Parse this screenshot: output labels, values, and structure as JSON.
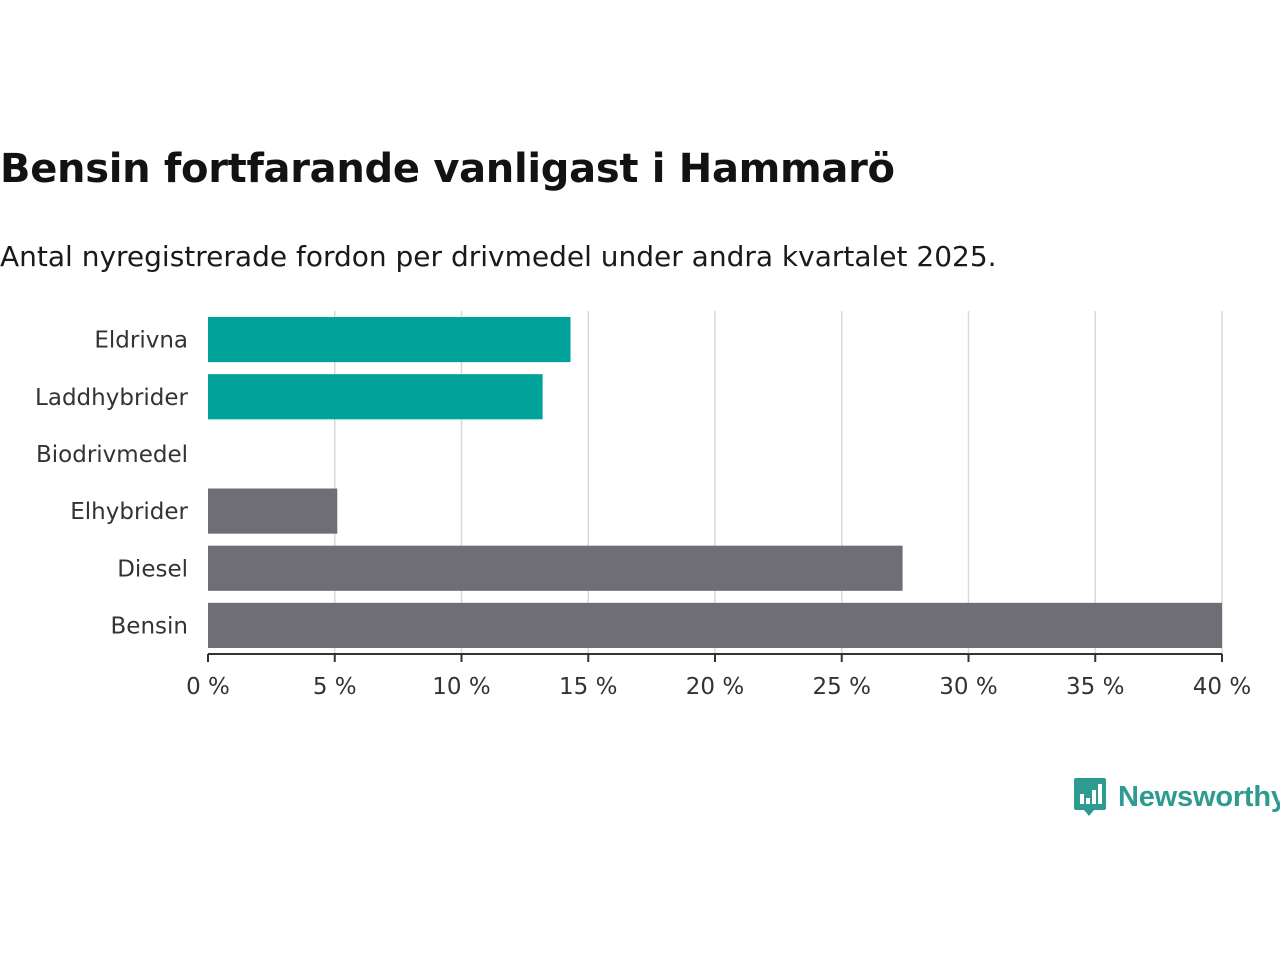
{
  "title": "Bensin fortfarande vanligast i Hammarö",
  "subtitle": "Antal nyregistrerade fordon per drivmedel under andra kvartalet 2025.",
  "brand": {
    "name": "Newsworthy",
    "icon": "newsworthy-logo-icon",
    "color": "#2f9a8f"
  },
  "colors": {
    "highlight": "#00a39a",
    "default": "#6f6e74",
    "grid": "#d9d9d9",
    "axis": "#333333"
  },
  "chart_data": {
    "type": "bar",
    "orientation": "horizontal",
    "title": "Bensin fortfarande vanligast i Hammarö",
    "subtitle": "Antal nyregistrerade fordon per drivmedel under andra kvartalet 2025.",
    "categories": [
      "Eldrivna",
      "Laddhybrider",
      "Biodrivmedel",
      "Elhybrider",
      "Diesel",
      "Bensin"
    ],
    "values": [
      14.3,
      13.2,
      0,
      5.1,
      27.4,
      40.0
    ],
    "highlighted": [
      true,
      true,
      false,
      false,
      false,
      false
    ],
    "xlim": [
      0,
      40
    ],
    "xticks": [
      0,
      5,
      10,
      15,
      20,
      25,
      30,
      35,
      40
    ],
    "xtick_labels": [
      "0 %",
      "5 %",
      "10 %",
      "15 %",
      "20 %",
      "25 %",
      "30 %",
      "35 %",
      "40 %"
    ],
    "grid": true,
    "legend": "none"
  }
}
